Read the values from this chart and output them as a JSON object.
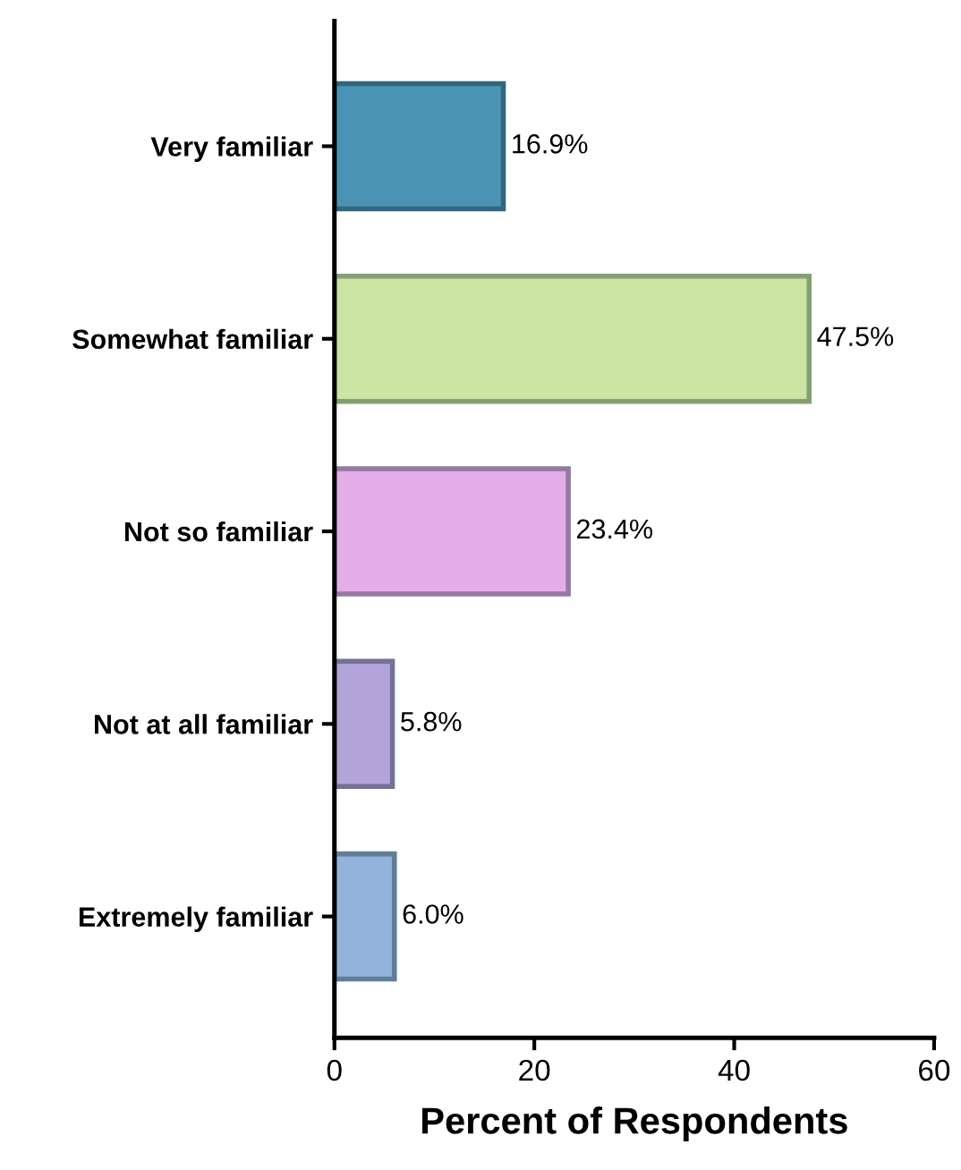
{
  "chart_data": {
    "type": "bar",
    "orientation": "horizontal",
    "xlabel": "Percent of Respondents",
    "categories": [
      "Very familiar",
      "Somewhat familiar",
      "Not so familiar",
      "Not at all familiar",
      "Extremely familiar"
    ],
    "values": [
      16.9,
      47.5,
      23.4,
      5.8,
      6.0
    ],
    "colors": [
      "#4a93b5",
      "#cbe3a3",
      "#e3aee8",
      "#b2a3d8",
      "#94b3dc"
    ],
    "value_labels": [
      "16.9%",
      "47.5%",
      "23.4%",
      "5.8%",
      "6.0%"
    ],
    "xlim": [
      0,
      60
    ],
    "xticks": [
      0,
      20,
      40,
      60
    ]
  }
}
